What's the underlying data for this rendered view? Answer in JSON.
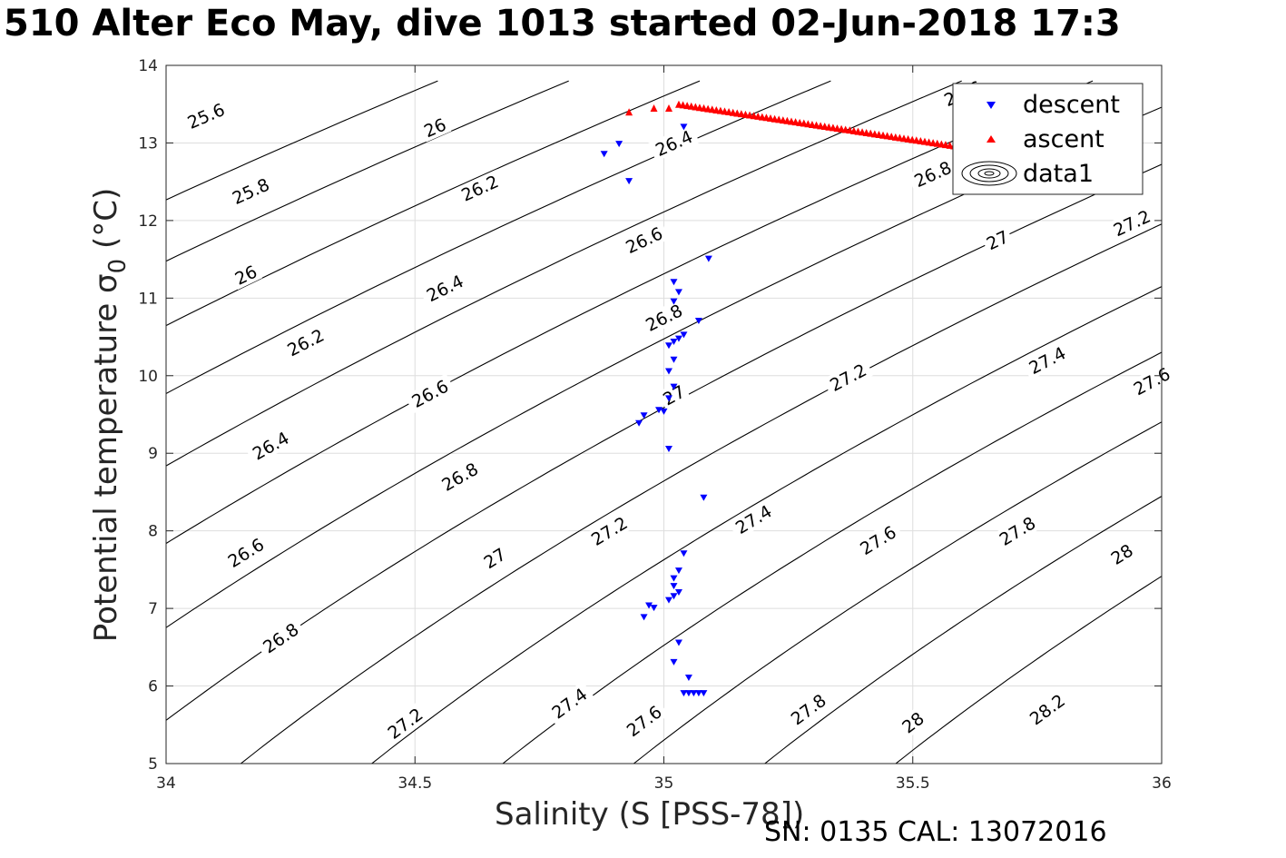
{
  "title": "510 Alter Eco May, dive 1013 started 02-Jun-2018 17:3",
  "footer": "SN: 0135  CAL: 13072016",
  "colors": {
    "descent": "#0000ff",
    "ascent": "#ff0000",
    "grid": "#dedede",
    "contour": "#000000"
  },
  "chart_data": {
    "type": "scatter",
    "title": "510 Alter Eco May, dive 1013 started 02-Jun-2018 17:3",
    "xlabel": "Salinity (S [PSS-78])",
    "ylabel": "Potential temperature σ",
    "ylabel_sub": "0",
    "ylabel_unit": " (°C)",
    "xlim": [
      34,
      36
    ],
    "ylim": [
      5,
      14
    ],
    "xticks": [
      34,
      34.5,
      35,
      35.5,
      36
    ],
    "xtick_labels": [
      "34",
      "34.5",
      "35",
      "35.5",
      "36"
    ],
    "yticks": [
      5,
      6,
      7,
      8,
      9,
      10,
      11,
      12,
      13,
      14
    ],
    "ytick_labels": [
      "5",
      "6",
      "7",
      "8",
      "9",
      "10",
      "11",
      "12",
      "13",
      "14"
    ],
    "grid": true,
    "legend_position": "top-right",
    "legend": [
      "descent",
      "ascent",
      "data1"
    ],
    "series": [
      {
        "name": "descent",
        "marker": "triangle-down",
        "color": "#0000ff",
        "x": [
          34.88,
          34.91,
          34.93,
          35.04,
          35.09,
          35.02,
          35.03,
          35.02,
          35.07,
          35.04,
          35.03,
          35.02,
          35.01,
          35.02,
          35.01,
          35.02,
          35.01,
          35.0,
          34.99,
          34.96,
          34.95,
          35.01,
          35.08,
          35.04,
          35.03,
          35.02,
          35.02,
          35.03,
          35.01,
          35.02,
          34.97,
          34.98,
          34.96,
          35.03,
          35.02,
          35.05,
          35.04,
          35.05,
          35.06,
          35.07,
          35.08
        ],
        "y": [
          12.85,
          12.98,
          12.5,
          13.2,
          11.5,
          11.2,
          11.07,
          10.95,
          10.7,
          10.52,
          10.47,
          10.43,
          10.38,
          10.2,
          10.05,
          9.85,
          9.7,
          9.53,
          9.55,
          9.48,
          9.38,
          9.05,
          8.42,
          7.7,
          7.48,
          7.38,
          7.28,
          7.2,
          7.1,
          7.15,
          7.03,
          7.0,
          6.88,
          6.55,
          6.3,
          6.1,
          5.9,
          5.9,
          5.9,
          5.9,
          5.9
        ]
      },
      {
        "name": "ascent",
        "marker": "triangle-up",
        "color": "#ff0000",
        "x": [
          34.93,
          34.98,
          35.01,
          35.03,
          35.7
        ],
        "y": [
          13.4,
          13.45,
          13.45,
          13.5,
          12.85
        ]
      }
    ],
    "contours_name": "data1",
    "contour_levels": [
      25.6,
      25.8,
      26,
      26.2,
      26.4,
      26.6,
      26.8,
      27,
      27.2,
      27.4,
      27.6,
      27.8,
      28,
      28.2
    ],
    "contour_labels": [
      {
        "text": "25.6",
        "x": 34.08,
        "y": 13.35
      },
      {
        "text": "25.8",
        "x": 34.17,
        "y": 12.38
      },
      {
        "text": "26",
        "x": 34.16,
        "y": 11.3
      },
      {
        "text": "26.2",
        "x": 34.28,
        "y": 10.43
      },
      {
        "text": "26.4",
        "x": 34.21,
        "y": 9.1
      },
      {
        "text": "26.6",
        "x": 34.16,
        "y": 7.72
      },
      {
        "text": "26.8",
        "x": 34.23,
        "y": 6.62
      },
      {
        "text": "27.2",
        "x": 34.48,
        "y": 5.52
      },
      {
        "text": "27.4",
        "x": 34.81,
        "y": 5.78
      },
      {
        "text": "27.6",
        "x": 34.96,
        "y": 5.55
      },
      {
        "text": "26",
        "x": 34.54,
        "y": 13.2
      },
      {
        "text": "26.2",
        "x": 34.63,
        "y": 12.42
      },
      {
        "text": "26.4",
        "x": 34.56,
        "y": 11.13
      },
      {
        "text": "26.6",
        "x": 34.53,
        "y": 9.77
      },
      {
        "text": "26.8",
        "x": 34.59,
        "y": 8.7
      },
      {
        "text": "27",
        "x": 34.66,
        "y": 7.65
      },
      {
        "text": "27.2",
        "x": 34.89,
        "y": 8.0
      },
      {
        "text": "26.4",
        "x": 35.02,
        "y": 13.0
      },
      {
        "text": "26.6",
        "x": 34.96,
        "y": 11.75
      },
      {
        "text": "26.8",
        "x": 35.0,
        "y": 10.75
      },
      {
        "text": "27",
        "x": 35.02,
        "y": 9.75
      },
      {
        "text": "27.4",
        "x": 35.18,
        "y": 8.15
      },
      {
        "text": "27.8",
        "x": 35.29,
        "y": 5.7
      },
      {
        "text": "27.2",
        "x": 35.37,
        "y": 9.98
      },
      {
        "text": "27.6",
        "x": 35.43,
        "y": 7.88
      },
      {
        "text": "28",
        "x": 35.5,
        "y": 5.53
      },
      {
        "text": "26.6",
        "x": 35.6,
        "y": 13.64
      },
      {
        "text": "26.8",
        "x": 35.54,
        "y": 12.6
      },
      {
        "text": "27",
        "x": 35.67,
        "y": 11.75
      },
      {
        "text": "27.4",
        "x": 35.77,
        "y": 10.2
      },
      {
        "text": "27.8",
        "x": 35.71,
        "y": 8.0
      },
      {
        "text": "28.2",
        "x": 35.77,
        "y": 5.7
      },
      {
        "text": "27.2",
        "x": 35.94,
        "y": 11.97
      },
      {
        "text": "27.6",
        "x": 35.98,
        "y": 9.93
      },
      {
        "text": "28",
        "x": 35.92,
        "y": 7.7
      }
    ]
  }
}
